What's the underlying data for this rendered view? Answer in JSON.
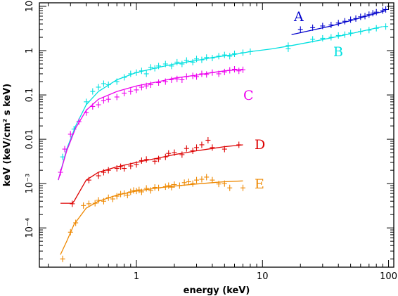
{
  "chart_data": {
    "type": "scatter",
    "title": "",
    "xlabel": "energy (keV)",
    "ylabel": "keV (keV/cm² s keV)",
    "xscale": "log",
    "yscale": "log",
    "xlim": [
      0.17,
      110
    ],
    "ylim": [
      1.3e-05,
      12
    ],
    "grid": false,
    "xticks": [
      {
        "v": 1,
        "label": "1"
      },
      {
        "v": 10,
        "label": "10"
      },
      {
        "v": 100,
        "label": "100"
      }
    ],
    "yticks": [
      {
        "v": 10,
        "label": "10"
      },
      {
        "v": 1,
        "label": "1"
      },
      {
        "v": 0.1,
        "label": "0.1"
      },
      {
        "v": 0.01,
        "label": "0.01"
      },
      {
        "v": 0.001,
        "label": "10⁻³"
      },
      {
        "v": 0.0001,
        "label": "10⁻⁴"
      }
    ],
    "series": [
      {
        "name": "A",
        "color": "#0000cc",
        "model": [
          [
            17,
            2.3
          ],
          [
            35,
            3.6
          ],
          [
            60,
            5.5
          ],
          [
            95,
            8.0
          ]
        ],
        "points": [
          [
            20,
            3.0
          ],
          [
            25,
            3.3
          ],
          [
            30,
            3.6
          ],
          [
            35,
            3.8
          ],
          [
            40,
            4.2
          ],
          [
            45,
            4.6
          ],
          [
            50,
            5.0
          ],
          [
            55,
            5.3
          ],
          [
            60,
            5.8
          ],
          [
            65,
            6.0
          ],
          [
            70,
            6.5
          ],
          [
            75,
            7.0
          ],
          [
            80,
            7.4
          ],
          [
            90,
            8.0
          ],
          [
            95,
            8.5
          ]
        ]
      },
      {
        "name": "B",
        "color": "#00e0e0",
        "model": [
          [
            0.24,
            0.0012
          ],
          [
            0.28,
            0.006
          ],
          [
            0.33,
            0.02
          ],
          [
            0.4,
            0.06
          ],
          [
            0.5,
            0.12
          ],
          [
            0.7,
            0.22
          ],
          [
            1,
            0.32
          ],
          [
            1.5,
            0.42
          ],
          [
            2,
            0.5
          ],
          [
            3,
            0.6
          ],
          [
            4,
            0.7
          ],
          [
            6,
            0.82
          ],
          [
            8,
            0.95
          ],
          [
            12,
            1.1
          ],
          [
            17,
            1.3
          ],
          [
            25,
            1.6
          ],
          [
            40,
            2.1
          ],
          [
            60,
            2.7
          ],
          [
            90,
            3.5
          ]
        ],
        "points": [
          [
            0.26,
            0.004
          ],
          [
            0.32,
            0.017
          ],
          [
            0.4,
            0.07
          ],
          [
            0.45,
            0.12
          ],
          [
            0.5,
            0.15
          ],
          [
            0.55,
            0.18
          ],
          [
            0.6,
            0.17
          ],
          [
            0.7,
            0.2
          ],
          [
            0.8,
            0.25
          ],
          [
            0.9,
            0.3
          ],
          [
            1,
            0.32
          ],
          [
            1.1,
            0.35
          ],
          [
            1.2,
            0.3
          ],
          [
            1.3,
            0.42
          ],
          [
            1.4,
            0.4
          ],
          [
            1.5,
            0.45
          ],
          [
            1.7,
            0.5
          ],
          [
            1.9,
            0.45
          ],
          [
            2.1,
            0.55
          ],
          [
            2.3,
            0.5
          ],
          [
            2.5,
            0.6
          ],
          [
            2.8,
            0.55
          ],
          [
            3,
            0.65
          ],
          [
            3.3,
            0.62
          ],
          [
            3.6,
            0.7
          ],
          [
            4,
            0.68
          ],
          [
            4.5,
            0.75
          ],
          [
            5,
            0.8
          ],
          [
            5.5,
            0.75
          ],
          [
            6,
            0.85
          ],
          [
            7,
            0.9
          ],
          [
            8,
            0.95
          ],
          [
            16,
            1.3
          ],
          [
            16,
            1.1
          ],
          [
            25,
            1.8
          ],
          [
            30,
            1.9
          ],
          [
            35,
            2.0
          ],
          [
            40,
            2.2
          ],
          [
            45,
            2.3
          ],
          [
            50,
            2.5
          ],
          [
            60,
            2.7
          ],
          [
            70,
            2.9
          ],
          [
            80,
            3.2
          ],
          [
            95,
            3.5
          ]
        ]
      },
      {
        "name": "C",
        "color": "#ee00ee",
        "model": [
          [
            0.24,
            0.0012
          ],
          [
            0.28,
            0.0055
          ],
          [
            0.33,
            0.018
          ],
          [
            0.4,
            0.045
          ],
          [
            0.5,
            0.08
          ],
          [
            0.7,
            0.12
          ],
          [
            1,
            0.16
          ],
          [
            1.5,
            0.2
          ],
          [
            2,
            0.24
          ],
          [
            3,
            0.28
          ],
          [
            4,
            0.32
          ],
          [
            5,
            0.35
          ],
          [
            7,
            0.38
          ]
        ],
        "points": [
          [
            0.25,
            0.0018
          ],
          [
            0.27,
            0.006
          ],
          [
            0.3,
            0.013
          ],
          [
            0.35,
            0.025
          ],
          [
            0.4,
            0.04
          ],
          [
            0.45,
            0.055
          ],
          [
            0.5,
            0.06
          ],
          [
            0.55,
            0.075
          ],
          [
            0.6,
            0.08
          ],
          [
            0.7,
            0.09
          ],
          [
            0.8,
            0.11
          ],
          [
            0.9,
            0.12
          ],
          [
            1,
            0.13
          ],
          [
            1.1,
            0.15
          ],
          [
            1.2,
            0.16
          ],
          [
            1.3,
            0.17
          ],
          [
            1.5,
            0.19
          ],
          [
            1.7,
            0.2
          ],
          [
            1.9,
            0.22
          ],
          [
            2.1,
            0.23
          ],
          [
            2.3,
            0.22
          ],
          [
            2.5,
            0.26
          ],
          [
            2.8,
            0.27
          ],
          [
            3,
            0.26
          ],
          [
            3.3,
            0.3
          ],
          [
            3.6,
            0.29
          ],
          [
            4,
            0.32
          ],
          [
            4.5,
            0.3
          ],
          [
            5,
            0.33
          ],
          [
            5.5,
            0.36
          ],
          [
            6,
            0.38
          ],
          [
            6.5,
            0.35
          ],
          [
            7,
            0.37
          ]
        ]
      },
      {
        "name": "D",
        "color": "#dd0000",
        "model": [
          [
            0.25,
            0.00036
          ],
          [
            0.31,
            0.00036
          ],
          [
            0.32,
            0.0004
          ],
          [
            0.4,
            0.0012
          ],
          [
            0.5,
            0.0018
          ],
          [
            0.7,
            0.0024
          ],
          [
            1,
            0.003
          ],
          [
            1.5,
            0.0038
          ],
          [
            2,
            0.0045
          ],
          [
            3,
            0.0055
          ],
          [
            4,
            0.0062
          ],
          [
            5,
            0.0068
          ],
          [
            7,
            0.0075
          ]
        ],
        "points": [
          [
            0.31,
            0.00035
          ],
          [
            0.42,
            0.0012
          ],
          [
            0.5,
            0.0015
          ],
          [
            0.55,
            0.0018
          ],
          [
            0.6,
            0.002
          ],
          [
            0.7,
            0.0022
          ],
          [
            0.75,
            0.0024
          ],
          [
            0.8,
            0.0022
          ],
          [
            0.9,
            0.0025
          ],
          [
            1,
            0.0027
          ],
          [
            1.1,
            0.0033
          ],
          [
            1.2,
            0.0035
          ],
          [
            1.4,
            0.0032
          ],
          [
            1.5,
            0.0036
          ],
          [
            1.7,
            0.004
          ],
          [
            1.8,
            0.0048
          ],
          [
            2,
            0.005
          ],
          [
            2.3,
            0.0045
          ],
          [
            2.5,
            0.0062
          ],
          [
            2.8,
            0.0055
          ],
          [
            3,
            0.0065
          ],
          [
            3.3,
            0.0075
          ],
          [
            3.7,
            0.0095
          ],
          [
            4,
            0.0065
          ],
          [
            5,
            0.006
          ],
          [
            6.5,
            0.0075
          ]
        ]
      },
      {
        "name": "E",
        "color": "#ee8800",
        "model": [
          [
            0.25,
            2.5e-05
          ],
          [
            0.28,
            5e-05
          ],
          [
            0.32,
            0.00012
          ],
          [
            0.4,
            0.00028
          ],
          [
            0.5,
            0.0004
          ],
          [
            0.7,
            0.00055
          ],
          [
            1,
            0.00068
          ],
          [
            1.5,
            0.0008
          ],
          [
            2,
            0.00088
          ],
          [
            3,
            0.00098
          ],
          [
            4,
            0.00105
          ],
          [
            5,
            0.0011
          ],
          [
            7,
            0.00115
          ]
        ],
        "points": [
          [
            0.26,
            2e-05
          ],
          [
            0.3,
            8e-05
          ],
          [
            0.33,
            0.00013
          ],
          [
            0.38,
            0.00032
          ],
          [
            0.42,
            0.00035
          ],
          [
            0.47,
            0.00036
          ],
          [
            0.5,
            0.00042
          ],
          [
            0.55,
            0.0004
          ],
          [
            0.6,
            0.00048
          ],
          [
            0.65,
            0.00045
          ],
          [
            0.7,
            0.00052
          ],
          [
            0.75,
            0.00058
          ],
          [
            0.8,
            0.0006
          ],
          [
            0.85,
            0.00055
          ],
          [
            0.9,
            0.00065
          ],
          [
            0.95,
            0.0007
          ],
          [
            1,
            0.00068
          ],
          [
            1.05,
            0.00072
          ],
          [
            1.1,
            0.00065
          ],
          [
            1.2,
            0.00078
          ],
          [
            1.3,
            0.0007
          ],
          [
            1.4,
            0.00082
          ],
          [
            1.5,
            0.0008
          ],
          [
            1.7,
            0.00085
          ],
          [
            1.8,
            0.0009
          ],
          [
            1.9,
            0.00083
          ],
          [
            2,
            0.00095
          ],
          [
            2.2,
            0.0009
          ],
          [
            2.4,
            0.00105
          ],
          [
            2.6,
            0.0011
          ],
          [
            2.8,
            0.001
          ],
          [
            3,
            0.0012
          ],
          [
            3.3,
            0.00125
          ],
          [
            3.6,
            0.0014
          ],
          [
            4,
            0.0012
          ],
          [
            4.5,
            0.00098
          ],
          [
            5,
            0.001
          ],
          [
            5.5,
            0.0008
          ],
          [
            7,
            0.0008
          ]
        ]
      }
    ]
  }
}
